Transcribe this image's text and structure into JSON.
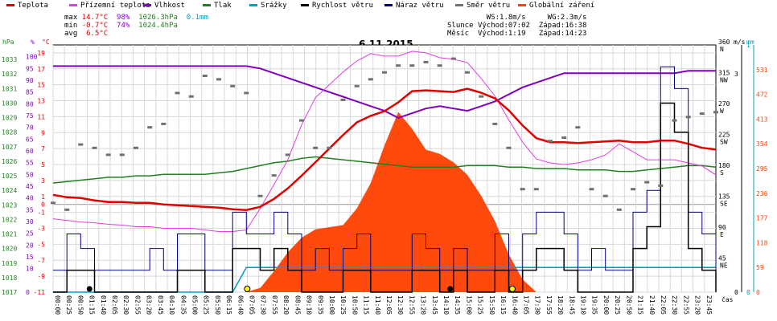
{
  "legend": [
    {
      "label": "Teplota",
      "color": "#e00000"
    },
    {
      "label": "Přízemní teplota",
      "color": "#e040e0"
    },
    {
      "label": "Vlhkost",
      "color": "#8000c0"
    },
    {
      "label": "Tlak",
      "color": "#208020"
    },
    {
      "label": "Srážky",
      "color": "#00a0c0"
    },
    {
      "label": "Rychlost větru",
      "color": "#000000"
    },
    {
      "label": "Náraz větru",
      "color": "#000080"
    },
    {
      "label": "Směr větru",
      "color": "#707070"
    },
    {
      "label": "Globální záření",
      "color": "#ff4000"
    }
  ],
  "stats": {
    "max_label": "max",
    "max_temp": "14.7°C",
    "max_hum": "98%",
    "max_press": "1026.3hPa",
    "max_rain": "0.1mm",
    "min_label": "min",
    "min_temp": "-0.7°C",
    "min_hum": "74%",
    "min_press": "1024.4hPa",
    "avg_label": "avg",
    "avg_temp": "6.5°C"
  },
  "sun": {
    "ws": "WS:1.8m/s",
    "wg": "WG:2.3m/s",
    "sun_label": "Slunce",
    "sun_rise": "Východ:07:02",
    "sun_set": "Západ:16:38",
    "moon_label": "Měsíc",
    "moon_rise": "Východ:1:19",
    "moon_set": "Západ:14:23"
  },
  "colors": {
    "temp": "#e00000",
    "ground": "#e040e0",
    "hum": "#8000c0",
    "press": "#208020",
    "rain": "#00a0c0",
    "wind": "#000000",
    "gust": "#000080",
    "dir": "#707070",
    "solar": "#ff4000",
    "grid": "#d8d8d8"
  },
  "chart_data": {
    "type": "line",
    "title": "6.11.2015",
    "xlabel": "čas",
    "axes": {
      "pressure": {
        "unit": "hPa",
        "ticks": [
          1017,
          1018,
          1019,
          1020,
          1021,
          1022,
          1023,
          1024,
          1025,
          1026,
          1027,
          1028,
          1029,
          1030,
          1031,
          1032,
          1033
        ],
        "range": [
          1017,
          1034
        ]
      },
      "humidity": {
        "unit": "%",
        "ticks": [
          0,
          10,
          15,
          20,
          25,
          30,
          35,
          40,
          45,
          50,
          55,
          60,
          65,
          70,
          75,
          80,
          85,
          90,
          95,
          100
        ],
        "range": [
          0,
          105
        ]
      },
      "temperature": {
        "unit": "°C",
        "ticks": [
          -11,
          -9,
          -7,
          -5,
          -3,
          -1,
          0,
          1,
          3,
          5,
          7,
          9,
          11,
          13,
          15,
          17,
          19
        ],
        "range": [
          -11,
          20
        ]
      },
      "direction": {
        "unit": "°",
        "ticks": [
          0,
          45,
          90,
          135,
          180,
          225,
          270,
          315,
          360
        ],
        "labels": [
          "",
          "NE",
          "E",
          "SE",
          "S",
          "SW",
          "W",
          "NW",
          "N"
        ],
        "range": [
          0,
          360
        ]
      },
      "wind": {
        "unit": "m/s",
        "ticks": [
          0,
          3
        ],
        "range": [
          0,
          3.4
        ]
      },
      "rain": {
        "unit": "mm",
        "ticks": [
          0,
          1
        ],
        "range": [
          0,
          1
        ]
      },
      "solar": {
        "unit": "W/m²",
        "ticks": [
          0,
          59,
          118,
          177,
          236,
          295,
          354,
          413,
          472,
          531
        ],
        "range": [
          0,
          590
        ]
      }
    },
    "x_ticks": [
      "00:00",
      "00:25",
      "00:50",
      "01:15",
      "01:40",
      "02:05",
      "02:30",
      "02:55",
      "03:20",
      "03:45",
      "04:10",
      "04:35",
      "05:00",
      "05:25",
      "05:50",
      "06:15",
      "06:40",
      "07:05",
      "07:30",
      "07:55",
      "08:20",
      "08:45",
      "09:10",
      "09:35",
      "10:00",
      "10:25",
      "10:50",
      "11:15",
      "11:40",
      "12:05",
      "12:30",
      "12:55",
      "13:20",
      "13:45",
      "14:10",
      "14:35",
      "15:00",
      "15:25",
      "15:50",
      "16:15",
      "16:40",
      "17:05",
      "17:30",
      "17:55",
      "18:20",
      "18:45",
      "19:10",
      "19:35",
      "20:00",
      "20:25",
      "20:50",
      "21:15",
      "21:40",
      "22:05",
      "22:30",
      "22:55",
      "23:20",
      "23:45"
    ],
    "hours": [
      0,
      0.5,
      1,
      1.5,
      2,
      2.5,
      3,
      3.5,
      4,
      4.5,
      5,
      5.5,
      6,
      6.5,
      7,
      7.5,
      8,
      8.5,
      9,
      9.5,
      10,
      10.5,
      11,
      11.5,
      12,
      12.5,
      13,
      13.5,
      14,
      14.5,
      15,
      15.5,
      16,
      16.5,
      17,
      17.5,
      18,
      18.5,
      19,
      19.5,
      20,
      20.5,
      21,
      21.5,
      22,
      22.5,
      23,
      23.5,
      24
    ],
    "series": [
      {
        "name": "Teplota",
        "axis": "temperature",
        "values": [
          1.2,
          0.9,
          0.8,
          0.5,
          0.3,
          0.3,
          0.2,
          0.2,
          0.0,
          -0.1,
          -0.2,
          -0.3,
          -0.4,
          -0.6,
          -0.7,
          -0.3,
          0.7,
          2.0,
          3.6,
          5.3,
          7.0,
          8.7,
          10.3,
          11.1,
          11.7,
          12.8,
          14.2,
          14.3,
          14.2,
          14.1,
          14.5,
          14.0,
          13.3,
          11.8,
          9.9,
          8.3,
          7.8,
          7.8,
          7.7,
          7.8,
          7.9,
          8.0,
          7.8,
          7.8,
          8.0,
          8.0,
          7.6,
          7.1,
          6.9
        ]
      },
      {
        "name": "Přízemní teplota",
        "axis": "temperature",
        "values": [
          -1.8,
          -2.0,
          -2.2,
          -2.3,
          -2.5,
          -2.6,
          -2.8,
          -2.8,
          -3.0,
          -3.0,
          -3.0,
          -3.2,
          -3.4,
          -3.4,
          -3.2,
          -0.5,
          2.5,
          5.6,
          10.0,
          13.4,
          15.0,
          16.6,
          18.0,
          18.9,
          18.6,
          18.6,
          19.2,
          19.0,
          18.4,
          18.2,
          17.8,
          15.8,
          13.6,
          10.6,
          7.8,
          5.7,
          5.2,
          5.0,
          5.2,
          5.6,
          6.2,
          7.6,
          6.6,
          5.6,
          5.6,
          5.6,
          5.2,
          4.8,
          3.7
        ]
      },
      {
        "name": "Vlhkost",
        "axis": "humidity",
        "values": [
          96,
          96,
          96,
          96,
          96,
          96,
          96,
          96,
          96,
          96,
          96,
          96,
          96,
          96,
          96,
          95,
          93,
          91,
          89,
          87,
          85,
          83,
          81,
          79,
          77,
          74,
          76,
          78,
          79,
          78,
          77,
          79,
          81,
          84,
          87,
          89,
          91,
          93,
          93,
          93,
          93,
          93,
          93,
          93,
          93,
          93,
          94,
          94,
          94
        ]
      },
      {
        "name": "Tlak",
        "axis": "pressure",
        "values": [
          1024.5,
          1024.6,
          1024.7,
          1024.8,
          1024.9,
          1024.9,
          1025.0,
          1025.0,
          1025.1,
          1025.1,
          1025.1,
          1025.1,
          1025.2,
          1025.3,
          1025.5,
          1025.7,
          1025.9,
          1026.0,
          1026.2,
          1026.3,
          1026.2,
          1026.1,
          1026.0,
          1025.9,
          1025.8,
          1025.7,
          1025.6,
          1025.6,
          1025.6,
          1025.6,
          1025.7,
          1025.7,
          1025.7,
          1025.6,
          1025.6,
          1025.5,
          1025.5,
          1025.5,
          1025.4,
          1025.4,
          1025.4,
          1025.3,
          1025.3,
          1025.4,
          1025.5,
          1025.6,
          1025.7,
          1025.7,
          1025.6
        ]
      },
      {
        "name": "Srážky",
        "axis": "rain",
        "values": [
          0,
          0,
          0,
          0,
          0,
          0,
          0,
          0,
          0,
          0,
          0,
          0,
          0,
          0,
          0.1,
          0.1,
          0.1,
          0.1,
          0.1,
          0.1,
          0.1,
          0.1,
          0.1,
          0.1,
          0.1,
          0.1,
          0.1,
          0.1,
          0.1,
          0.1,
          0.1,
          0.1,
          0.1,
          0.1,
          0.1,
          0.1,
          0.1,
          0.1,
          0.1,
          0.1,
          0.1,
          0.1,
          0.1,
          0.1,
          0.1,
          0.1,
          0.1,
          0.1,
          0.1
        ]
      },
      {
        "name": "Rychlost větru",
        "axis": "wind",
        "values": [
          0,
          0.3,
          0.3,
          0,
          0,
          0,
          0,
          0,
          0,
          0.3,
          0.3,
          0,
          0,
          0.6,
          0.6,
          0.3,
          0.6,
          0.3,
          0,
          0,
          0,
          0.3,
          0.3,
          0,
          0,
          0,
          0.3,
          0.3,
          0,
          0.3,
          0,
          0,
          0.3,
          0,
          0.3,
          0.6,
          0.6,
          0.3,
          0,
          0,
          0,
          0,
          0.6,
          0.9,
          2.6,
          2.2,
          0.6,
          0.3,
          0
        ]
      },
      {
        "name": "Náraz větru",
        "axis": "wind",
        "values": [
          0.3,
          0.8,
          0.6,
          0.3,
          0.3,
          0.3,
          0.3,
          0.6,
          0.3,
          0.8,
          0.8,
          0.3,
          0.3,
          1.1,
          0.8,
          0.8,
          1.1,
          0.8,
          0.3,
          0.6,
          0.3,
          0.6,
          0.8,
          0.3,
          0.3,
          0.3,
          0.8,
          0.6,
          0.3,
          0.6,
          0.3,
          0.3,
          0.8,
          0.3,
          0.8,
          1.1,
          1.1,
          0.8,
          0.3,
          0.6,
          0.3,
          0.3,
          1.1,
          1.4,
          3.1,
          2.8,
          1.1,
          0.8,
          0.3
        ]
      },
      {
        "name": "Směr větru",
        "axis": "direction",
        "values": [
          130,
          120,
          215,
          210,
          200,
          200,
          210,
          240,
          245,
          290,
          285,
          315,
          310,
          300,
          290,
          140,
          170,
          200,
          250,
          210,
          210,
          280,
          300,
          310,
          320,
          330,
          330,
          335,
          330,
          340,
          320,
          285,
          245,
          210,
          150,
          150,
          220,
          225,
          240,
          150,
          140,
          120,
          150,
          160,
          155,
          250,
          255,
          260,
          262
        ]
      },
      {
        "name": "Globální záření",
        "axis": "solar",
        "values": [
          0,
          0,
          0,
          0,
          0,
          0,
          0,
          0,
          0,
          0,
          0,
          0,
          0,
          0,
          0,
          10,
          50,
          95,
          130,
          150,
          155,
          160,
          200,
          260,
          350,
          430,
          390,
          340,
          330,
          310,
          280,
          230,
          170,
          90,
          30,
          0,
          0,
          0,
          0,
          0,
          0,
          0,
          0,
          0,
          0,
          0,
          0,
          0,
          0
        ]
      }
    ]
  }
}
